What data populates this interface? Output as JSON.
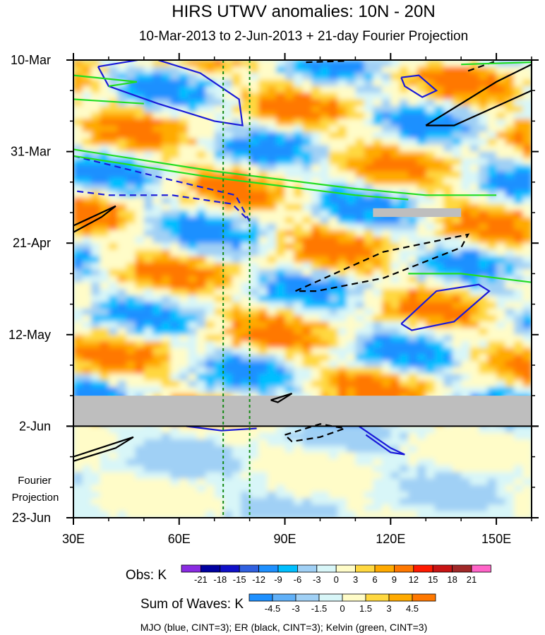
{
  "chart_data": {
    "type": "heatmap",
    "title": "HIRS UTWV anomalies: 10N - 20N",
    "subtitle": "10-Mar-2013 to 2-Jun-2013 + 21-day Fourier Projection",
    "xaxis": {
      "range": [
        30,
        160
      ],
      "ticks": [
        {
          "value": 30,
          "label": "30E"
        },
        {
          "value": 60,
          "label": "60E"
        },
        {
          "value": 90,
          "label": "90E"
        },
        {
          "value": 120,
          "label": "120E"
        },
        {
          "value": 150,
          "label": "150E"
        }
      ]
    },
    "yaxis": {
      "range_days": [
        0,
        105
      ],
      "ticks": [
        {
          "day": 0,
          "label": "10-Mar"
        },
        {
          "day": 21,
          "label": "31-Mar"
        },
        {
          "day": 42,
          "label": "21-Apr"
        },
        {
          "day": 63,
          "label": "12-May"
        },
        {
          "day": 84,
          "label": "2-Jun"
        },
        {
          "day": 105,
          "label": "23-Jun"
        }
      ]
    },
    "projection_label": [
      "Fourier",
      "Projection"
    ],
    "projection_start_day": 84,
    "missing_data_bands": [
      {
        "day_start": 77,
        "day_end": 84,
        "lon_start": 30,
        "lon_end": 160
      },
      {
        "day_start": 34,
        "day_end": 36,
        "lon_start": 115,
        "lon_end": 140
      }
    ],
    "reference_lines_lon": [
      72.5,
      80
    ],
    "obs_legend": {
      "label": "Obs: K",
      "levels": [
        "-21",
        "-18",
        "-15",
        "-12",
        "-9",
        "-6",
        "-3",
        "0",
        "3",
        "6",
        "9",
        "12",
        "15",
        "18",
        "21"
      ],
      "colors": [
        "#8a2be2",
        "#0000a0",
        "#1010c8",
        "#3060e0",
        "#1e90ff",
        "#00bfff",
        "#a0d0f5",
        "#d8f6f8",
        "#fffcc8",
        "#ffd840",
        "#ffaa00",
        "#ff7800",
        "#ff1a00",
        "#c81414",
        "#a02828",
        "#ff64c8"
      ]
    },
    "wave_legend": {
      "label": "Sum of Waves: K",
      "levels": [
        "-4.5",
        "-3",
        "-1.5",
        "0",
        "1.5",
        "3",
        "4.5"
      ],
      "colors": [
        "#1e90ff",
        "#60b0f8",
        "#a0d0f5",
        "#d8f6f8",
        "#fffcc8",
        "#ffd840",
        "#ffaa00",
        "#ff7800"
      ]
    },
    "contours_caption": "MJO (blue, CINT=3); ER (black, CINT=3); Kelvin (green, CINT=3)",
    "contour_series": [
      {
        "name": "MJO",
        "color": "#1a1ad8"
      },
      {
        "name": "ER",
        "color": "#000000"
      },
      {
        "name": "Kelvin",
        "color": "#22dd22"
      }
    ]
  }
}
